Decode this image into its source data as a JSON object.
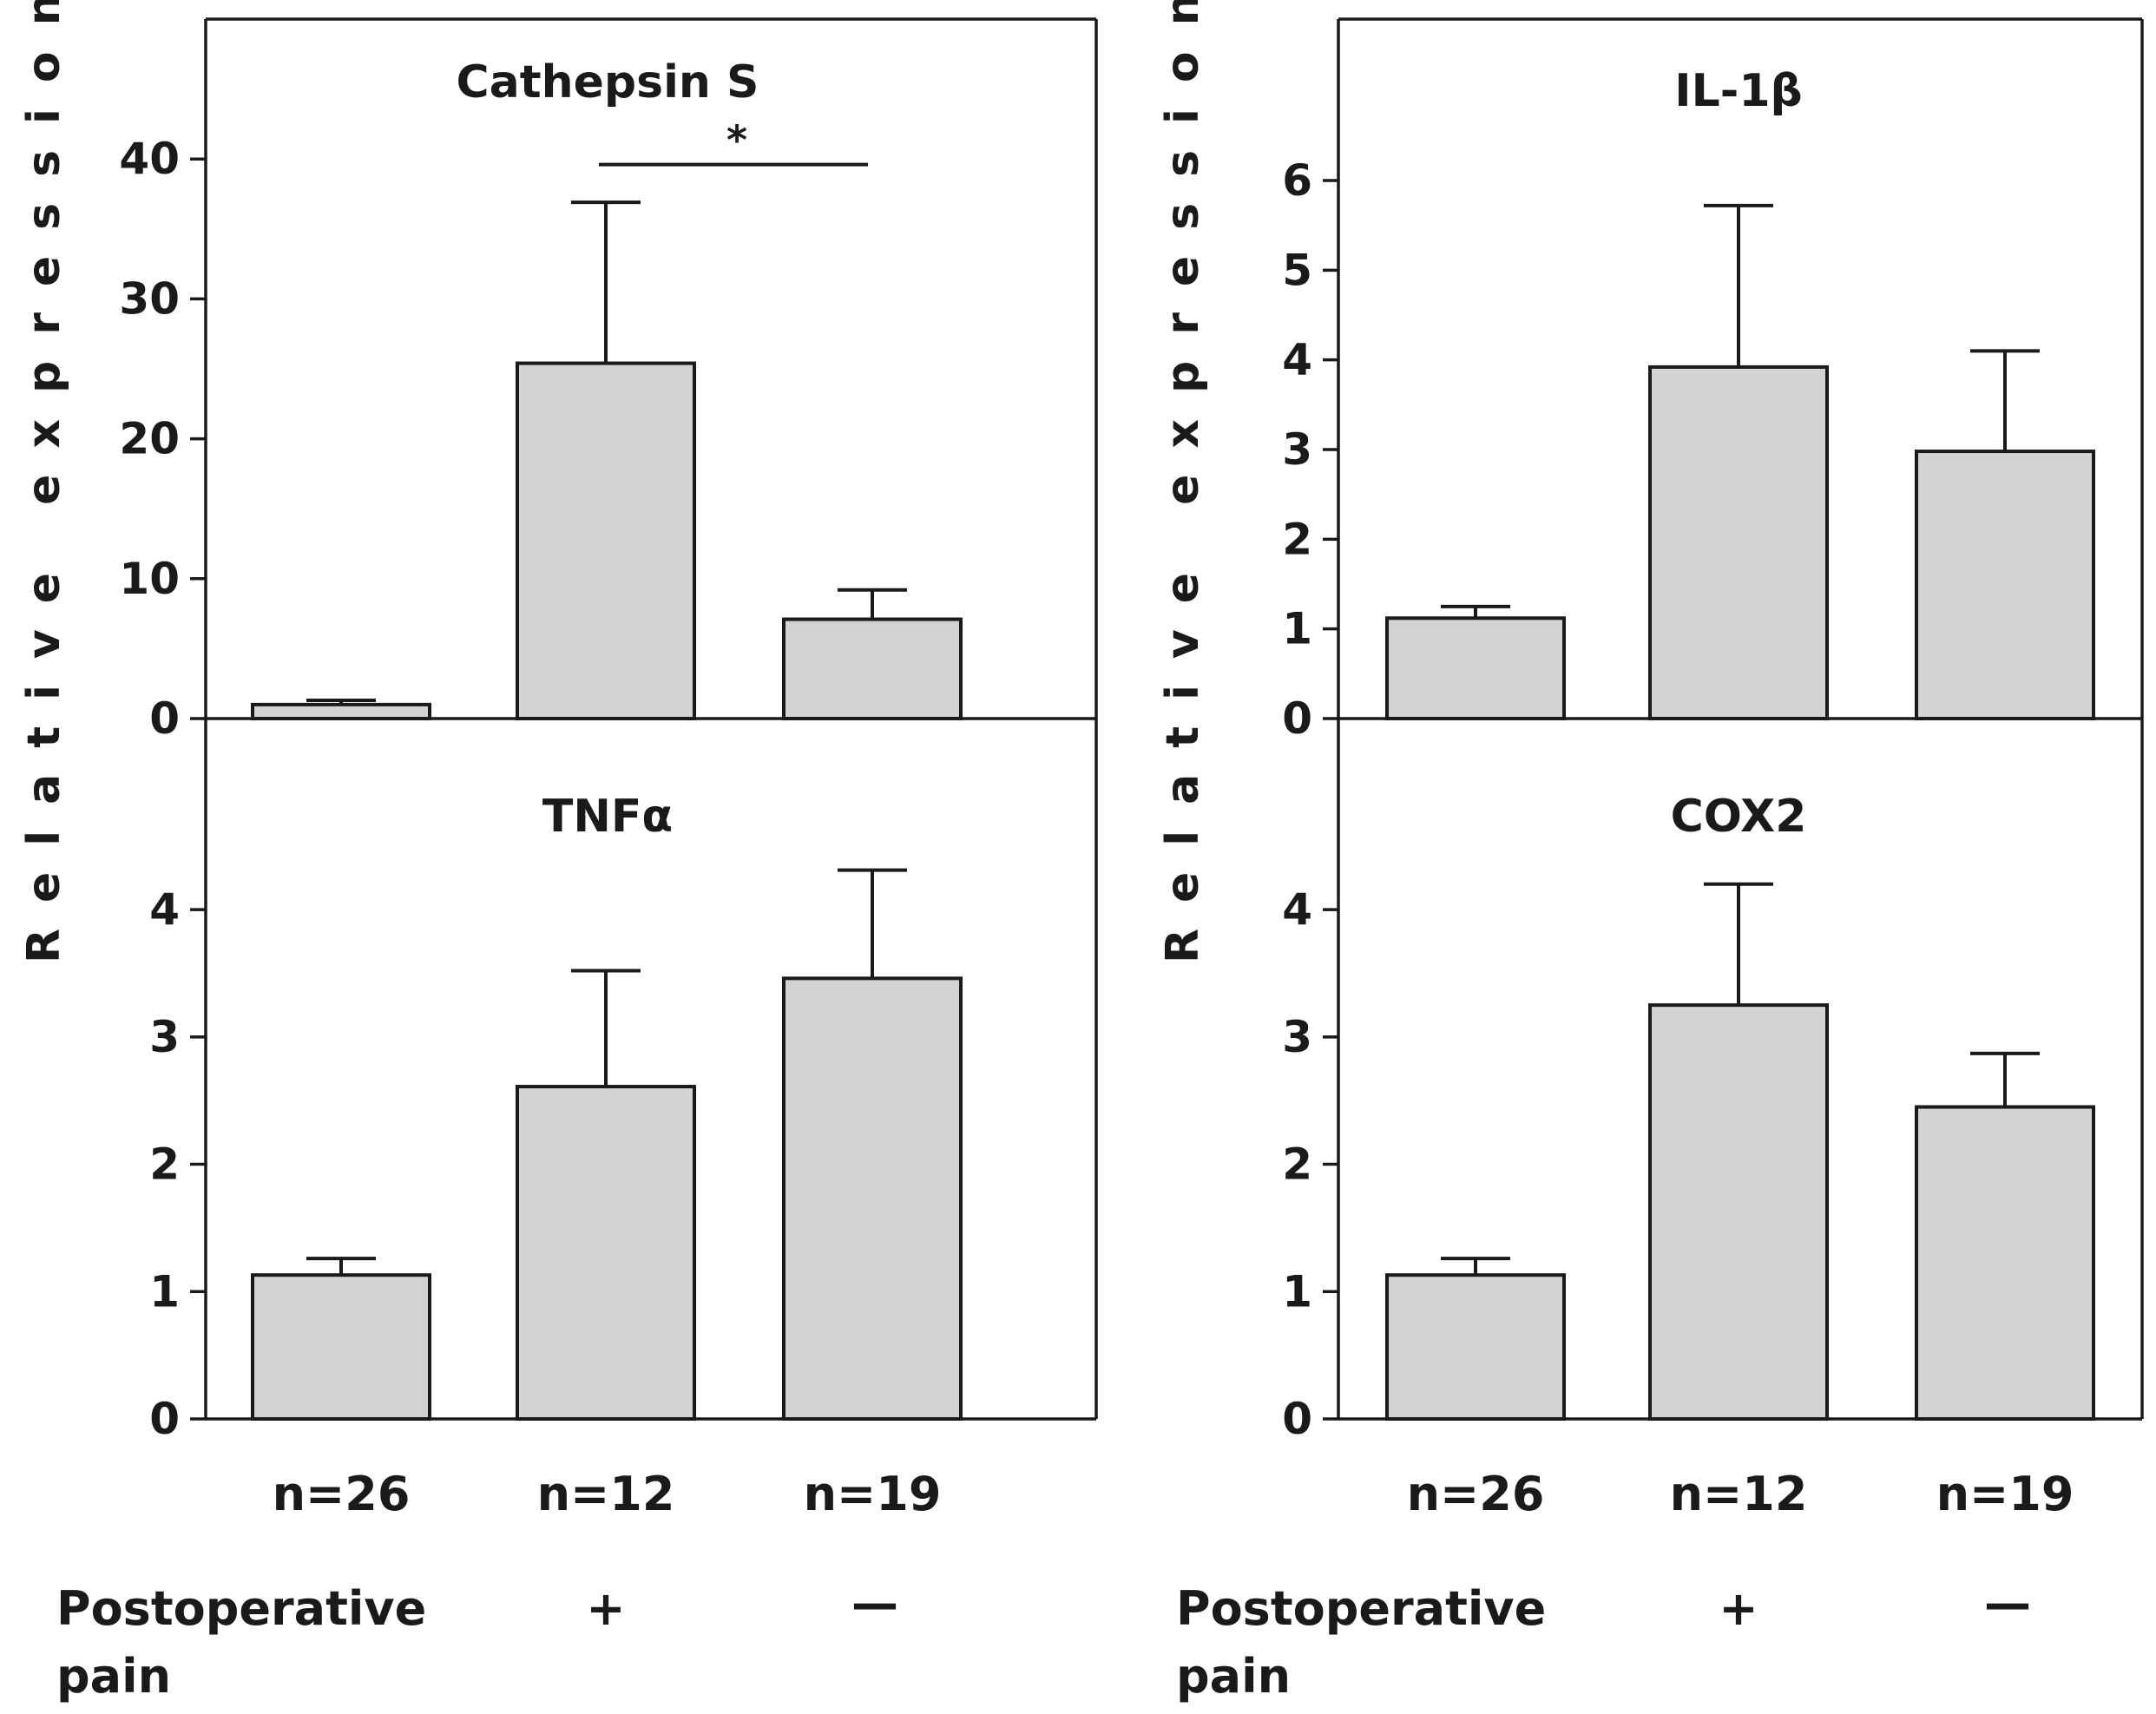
{
  "figure": {
    "ylabel": "Relative expression",
    "footer_label_line1": "Postoperative",
    "footer_label_line2": "pain",
    "pain_plus": "+",
    "pain_minus": "—",
    "sample_sizes": [
      "n=26",
      "n=12",
      "n=19"
    ],
    "colors": {
      "bar_fill": "#d3d3d3",
      "ink": "#1a1a1a"
    }
  },
  "chart_data": [
    {
      "type": "bar",
      "title": "Cathepsin S",
      "categories": [
        "n=26",
        "n=12",
        "n=19"
      ],
      "values": [
        1,
        25.4,
        7.1
      ],
      "errors": [
        0.3,
        11.5,
        2.1
      ],
      "ylim": [
        0,
        50
      ],
      "yticks": [
        0,
        10,
        20,
        30,
        40
      ],
      "significance": {
        "from": 1,
        "to": 2,
        "label": "*",
        "y": 39.6
      }
    },
    {
      "type": "bar",
      "title": "IL-1β",
      "categories": [
        "n=26",
        "n=12",
        "n=19"
      ],
      "values": [
        1.12,
        3.92,
        2.98
      ],
      "errors": [
        0.13,
        1.8,
        1.12
      ],
      "ylim": [
        0,
        7.8
      ],
      "yticks": [
        0,
        1,
        2,
        3,
        4,
        5,
        6
      ]
    },
    {
      "type": "bar",
      "title": "TNFα",
      "categories": [
        "n=26",
        "n=12",
        "n=19"
      ],
      "values": [
        1.13,
        2.61,
        3.46
      ],
      "errors": [
        0.13,
        0.91,
        0.85
      ],
      "ylim": [
        0,
        5.5
      ],
      "yticks": [
        0,
        1,
        2,
        3,
        4
      ]
    },
    {
      "type": "bar",
      "title": "COX2",
      "categories": [
        "n=26",
        "n=12",
        "n=19"
      ],
      "values": [
        1.13,
        3.25,
        2.45
      ],
      "errors": [
        0.13,
        0.95,
        0.42
      ],
      "ylim": [
        0,
        5.5
      ],
      "yticks": [
        0,
        1,
        2,
        3,
        4
      ]
    }
  ]
}
